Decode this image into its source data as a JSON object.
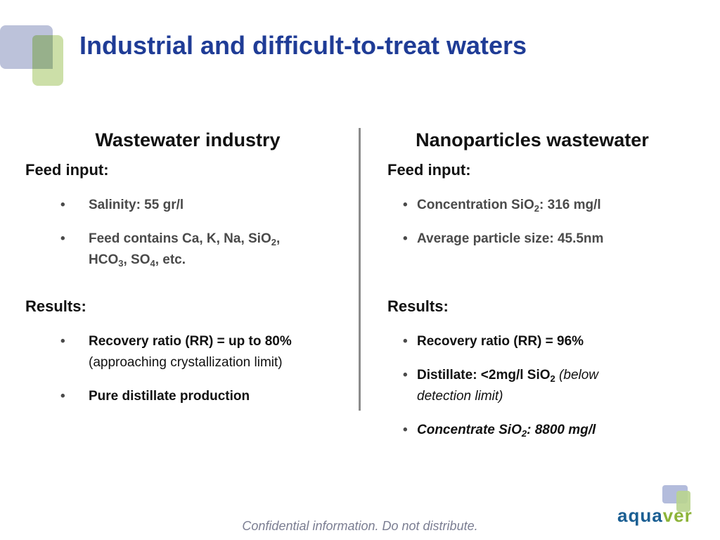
{
  "slide": {
    "title": "Industrial and difficult-to-treat waters",
    "footer": "Confidential information. Do not distribute."
  },
  "brand": {
    "part1": "aqua",
    "part2": "ver",
    "colors": {
      "aqua": "#1b5f93",
      "ver": "#8db43a",
      "title": "#1f3c96"
    }
  },
  "left": {
    "heading": "Wastewater industry",
    "feed_label": "Feed input:",
    "feed_items": [
      {
        "text": "Salinity: 55 gr/l"
      },
      {
        "t1": "Feed contains Ca, K, Na, SiO",
        "s1": "2",
        "t2": ",",
        "t3": "HCO",
        "s2": "3",
        "t4": ", SO",
        "s3": "4",
        "t5": ", etc."
      }
    ],
    "results_label": "Results:",
    "results_items": [
      {
        "bold": "Recovery ratio (RR) = up to 80%",
        "normal": "(approaching crystallization limit)"
      },
      {
        "text": "Pure distillate production"
      }
    ]
  },
  "right": {
    "heading": "Nanoparticles wastewater",
    "feed_label": "Feed input:",
    "feed_items": [
      {
        "t1": "Concentration SiO",
        "s1": "2",
        "t2": ": 316 mg/l"
      },
      {
        "text": "Average particle size: 45.5nm"
      }
    ],
    "results_label": "Results:",
    "results_items": [
      {
        "text": "Recovery ratio (RR) = 96%"
      },
      {
        "t1": "Distillate: <2mg/l SiO",
        "s1": "2",
        "italic1": " (below",
        "italic2": "detection limit)"
      },
      {
        "t1": "Concentrate SiO",
        "s1": "2",
        "t2": ": 8800 mg/l"
      }
    ]
  },
  "bullet_symbol": "•"
}
